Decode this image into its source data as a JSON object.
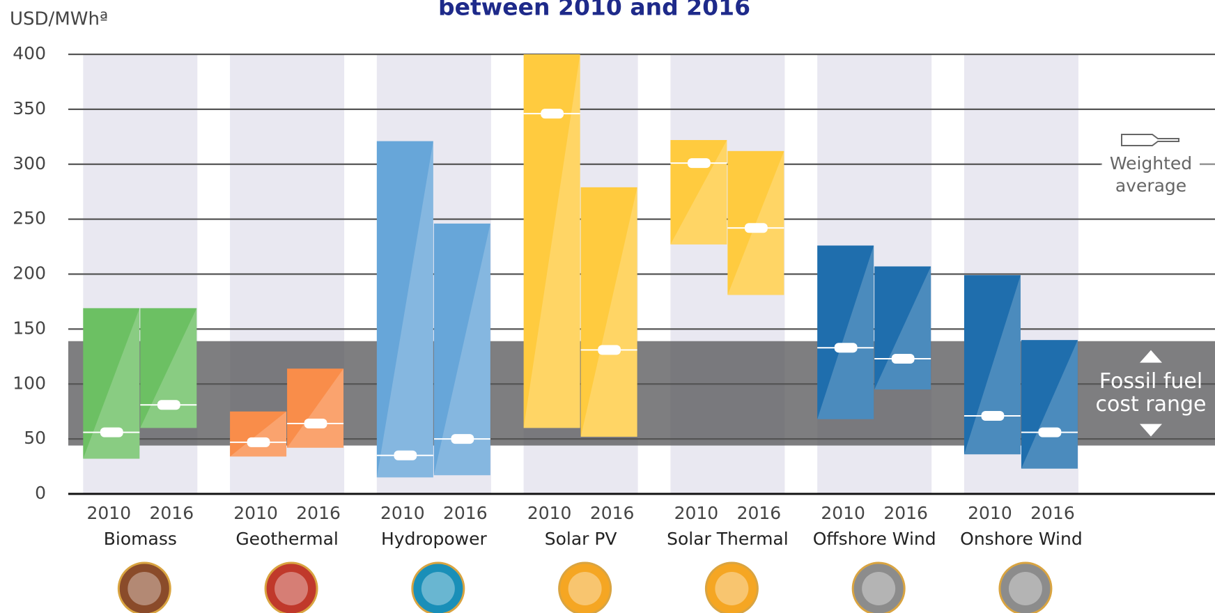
{
  "chart_data": {
    "type": "range-bar",
    "title": "between 2010 and 2016",
    "y_label": "USD/MWhª",
    "ylim": [
      0,
      400
    ],
    "yticks": [
      0,
      50,
      100,
      150,
      200,
      250,
      300,
      350,
      400
    ],
    "grid": true,
    "fossil_range": [
      44,
      139
    ],
    "fossil_label": [
      "Fossil fuel",
      "cost range"
    ],
    "average_label": [
      "Weighted",
      "average"
    ],
    "groups": [
      {
        "name": "Biomass",
        "color": "#6cc063",
        "icon": "#8a4b2a",
        "bars": [
          {
            "year": "2010",
            "low": 32,
            "high": 169,
            "average": 56
          },
          {
            "year": "2016",
            "low": 60,
            "high": 169,
            "average": 81
          }
        ]
      },
      {
        "name": "Geothermal",
        "color": "#f98d4a",
        "icon": "#c0392b",
        "bars": [
          {
            "year": "2010",
            "low": 34,
            "high": 75,
            "average": 47
          },
          {
            "year": "2016",
            "low": 42,
            "high": 114,
            "average": 64
          }
        ]
      },
      {
        "name": "Hydropower",
        "color": "#67a6d9",
        "icon": "#1a8fb8",
        "bars": [
          {
            "year": "2010",
            "low": 15,
            "high": 321,
            "average": 35
          },
          {
            "year": "2016",
            "low": 17,
            "high": 246,
            "average": 50
          }
        ]
      },
      {
        "name": "Solar PV",
        "color": "#ffcb3f",
        "icon": "#f5a623",
        "bars": [
          {
            "year": "2010",
            "low": 60,
            "high": 400,
            "average": 346
          },
          {
            "year": "2016",
            "low": 52,
            "high": 279,
            "average": 131
          }
        ]
      },
      {
        "name": "Solar Thermal",
        "color": "#ffcb3f",
        "icon": "#f5a623",
        "bars": [
          {
            "year": "2010",
            "low": 227,
            "high": 322,
            "average": 301
          },
          {
            "year": "2016",
            "low": 181,
            "high": 312,
            "average": 242
          }
        ]
      },
      {
        "name": "Offshore Wind",
        "color": "#1f6ead",
        "icon": "#8c8c8c",
        "bars": [
          {
            "year": "2010",
            "low": 68,
            "high": 226,
            "average": 133
          },
          {
            "year": "2016",
            "low": 95,
            "high": 207,
            "average": 123
          }
        ]
      },
      {
        "name": "Onshore Wind",
        "color": "#1f6ead",
        "icon": "#8c8c8c",
        "bars": [
          {
            "year": "2010",
            "low": 36,
            "high": 199,
            "average": 71
          },
          {
            "year": "2016",
            "low": 23,
            "high": 140,
            "average": 56
          }
        ]
      }
    ]
  }
}
